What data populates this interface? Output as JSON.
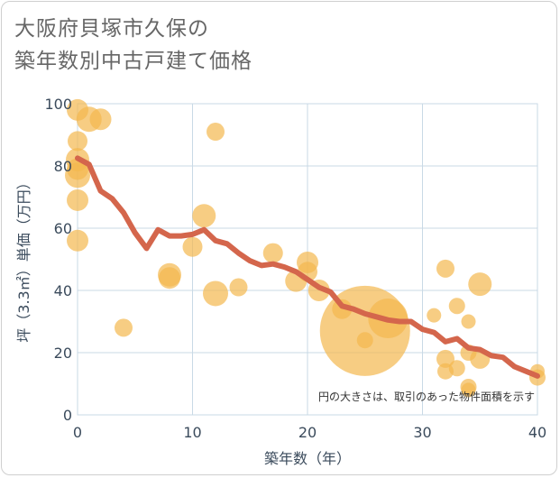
{
  "title_lines": [
    "大阪府貝塚市久保の",
    "築年数別中古戸建て価格"
  ],
  "chart_data": {
    "type": "scatter",
    "title": "大阪府貝塚市久保の築年数別中古戸建て価格",
    "xlabel": "築年数（年）",
    "ylabel": "坪（3.3㎡）単価（万円）",
    "xlim": [
      0,
      40
    ],
    "ylim": [
      0,
      100
    ],
    "xticks": [
      0,
      10,
      20,
      30,
      40
    ],
    "yticks": [
      0,
      20,
      40,
      60,
      80,
      100
    ],
    "grid": true,
    "note": "円の大きさは、取引のあった物件面積を示す",
    "colors": {
      "bubble": "#f3b84f",
      "line": "#d4664c",
      "grid": "#c9d9e6",
      "plot_border": "#c9d9e6"
    },
    "scatter_points": [
      {
        "x": 0,
        "y": 98,
        "size": 12
      },
      {
        "x": 0,
        "y": 88,
        "size": 11
      },
      {
        "x": 0,
        "y": 82,
        "size": 13
      },
      {
        "x": 0,
        "y": 79,
        "size": 12
      },
      {
        "x": 0,
        "y": 77,
        "size": 14
      },
      {
        "x": 0,
        "y": 69,
        "size": 12
      },
      {
        "x": 0,
        "y": 56,
        "size": 12
      },
      {
        "x": 1,
        "y": 95,
        "size": 14
      },
      {
        "x": 2,
        "y": 95,
        "size": 12
      },
      {
        "x": 4,
        "y": 28,
        "size": 10
      },
      {
        "x": 8,
        "y": 45,
        "size": 13
      },
      {
        "x": 8,
        "y": 44,
        "size": 12
      },
      {
        "x": 10,
        "y": 54,
        "size": 11
      },
      {
        "x": 11,
        "y": 64,
        "size": 13
      },
      {
        "x": 12,
        "y": 91,
        "size": 10
      },
      {
        "x": 12,
        "y": 39,
        "size": 14
      },
      {
        "x": 14,
        "y": 41,
        "size": 10
      },
      {
        "x": 17,
        "y": 52,
        "size": 11
      },
      {
        "x": 19,
        "y": 43,
        "size": 12
      },
      {
        "x": 20,
        "y": 49,
        "size": 12
      },
      {
        "x": 20,
        "y": 46,
        "size": 11
      },
      {
        "x": 21,
        "y": 40,
        "size": 12
      },
      {
        "x": 23,
        "y": 34,
        "size": 11
      },
      {
        "x": 25,
        "y": 27,
        "size": 50
      },
      {
        "x": 25,
        "y": 24,
        "size": 9
      },
      {
        "x": 27,
        "y": 31,
        "size": 22
      },
      {
        "x": 31,
        "y": 32,
        "size": 8
      },
      {
        "x": 32,
        "y": 47,
        "size": 10
      },
      {
        "x": 32,
        "y": 18,
        "size": 10
      },
      {
        "x": 32,
        "y": 14,
        "size": 9
      },
      {
        "x": 33,
        "y": 35,
        "size": 9
      },
      {
        "x": 33,
        "y": 15,
        "size": 9
      },
      {
        "x": 34,
        "y": 30,
        "size": 8
      },
      {
        "x": 34,
        "y": 20,
        "size": 9
      },
      {
        "x": 34,
        "y": 9,
        "size": 9
      },
      {
        "x": 34,
        "y": 8,
        "size": 8
      },
      {
        "x": 35,
        "y": 42,
        "size": 13
      },
      {
        "x": 35,
        "y": 18,
        "size": 11
      },
      {
        "x": 40,
        "y": 14,
        "size": 8
      },
      {
        "x": 40,
        "y": 12,
        "size": 9
      }
    ],
    "trend_line": {
      "x": [
        0,
        1,
        2,
        3,
        4,
        5,
        6,
        7,
        8,
        9,
        10,
        11,
        12,
        13,
        14,
        15,
        16,
        17,
        18,
        19,
        20,
        21,
        22,
        23,
        24,
        25,
        26,
        27,
        28,
        29,
        30,
        31,
        32,
        33,
        34,
        35,
        36,
        37,
        38,
        39,
        40
      ],
      "y": [
        82.5,
        80.5,
        72,
        69.5,
        65,
        58.5,
        53.5,
        59.5,
        57.5,
        57.5,
        58,
        59.5,
        56,
        55,
        52,
        49.5,
        48,
        48.5,
        47.5,
        46,
        43.5,
        41,
        39.5,
        35,
        34,
        32.5,
        31.5,
        30.5,
        30,
        30,
        27.5,
        26.5,
        23.5,
        24.5,
        21.5,
        21,
        19,
        18.5,
        15.5,
        14,
        12.5
      ]
    }
  }
}
